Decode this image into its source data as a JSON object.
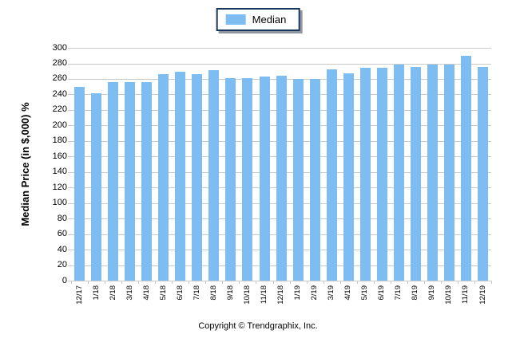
{
  "legend": {
    "items": [
      {
        "label": "Median",
        "color": "#7DBDF1"
      }
    ]
  },
  "y_axis": {
    "title": "Median Price (in $,000) %"
  },
  "footer": {
    "text": "Copyright © Trendgraphix, Inc."
  },
  "colors": {
    "bar": "#7DBDF1",
    "gridline": "#C9C9C9",
    "legend_border": "#17375E",
    "text": "#000000"
  },
  "chart_data": {
    "type": "bar",
    "title": "",
    "categories": [
      "12/17",
      "1/18",
      "2/18",
      "3/18",
      "4/18",
      "5/18",
      "6/18",
      "7/18",
      "8/18",
      "9/18",
      "10/18",
      "11/18",
      "12/18",
      "1/19",
      "2/19",
      "3/19",
      "4/19",
      "5/19",
      "6/19",
      "7/19",
      "8/19",
      "9/19",
      "10/19",
      "11/19",
      "12/19"
    ],
    "series": [
      {
        "name": "Median",
        "values": [
          250,
          242,
          256,
          256,
          256,
          266,
          269,
          266,
          271,
          261,
          261,
          263,
          264,
          260,
          260,
          272,
          267,
          274,
          274,
          278,
          275,
          278,
          278,
          290,
          275
        ]
      }
    ],
    "xlabel": "",
    "ylabel": "Median Price (in $,000) %",
    "ylim": [
      0,
      300
    ],
    "ytick_step": 20,
    "grid": true,
    "legend_position": "top-center",
    "bar_color": "#7DBDF1"
  }
}
